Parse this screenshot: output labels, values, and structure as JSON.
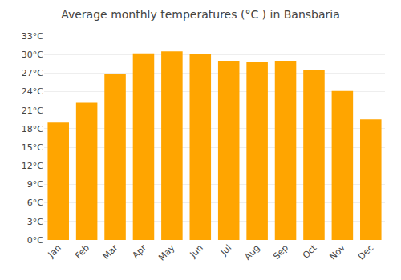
{
  "chart_data": {
    "type": "bar",
    "title": "Average monthly temperatures (°C ) in Bānsbāria",
    "categories": [
      "Jan",
      "Feb",
      "Mar",
      "Apr",
      "May",
      "Jun",
      "Jul",
      "Aug",
      "Sep",
      "Oct",
      "Nov",
      "Dec"
    ],
    "values": [
      19.0,
      22.2,
      26.8,
      30.2,
      30.5,
      30.1,
      29.0,
      28.8,
      29.0,
      27.5,
      24.1,
      19.5
    ],
    "color": "#FFA500",
    "ylim": [
      0,
      33
    ],
    "yticks": [
      {
        "value": 0,
        "label": "0°C"
      },
      {
        "value": 3,
        "label": "3°C"
      },
      {
        "value": 6,
        "label": "6°C"
      },
      {
        "value": 9,
        "label": "9°C"
      },
      {
        "value": 12,
        "label": "12°C"
      },
      {
        "value": 15,
        "label": "15°C"
      },
      {
        "value": 18,
        "label": "18°C"
      },
      {
        "value": 21,
        "label": "21°C"
      },
      {
        "value": 24,
        "label": "24°C"
      },
      {
        "value": 27,
        "label": "27°C"
      },
      {
        "value": 30,
        "label": "30°C"
      },
      {
        "value": 33,
        "label": "33°C"
      }
    ],
    "grid": true
  }
}
